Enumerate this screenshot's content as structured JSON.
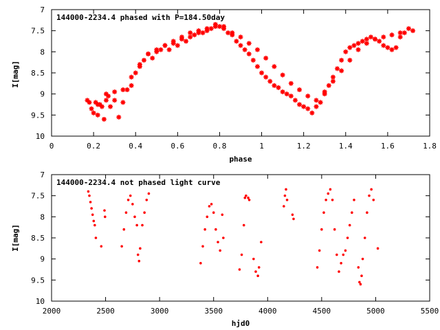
{
  "chart_data": [
    {
      "type": "scatter",
      "title": "144000-2234.4 phased with P=184.50day",
      "xlabel": "phase",
      "ylabel": "I[mag]",
      "xlim": [
        0,
        1.8
      ],
      "ylim": [
        10,
        7
      ],
      "y_inverted": true,
      "xticks": [
        0,
        0.2,
        0.4,
        0.6,
        0.8,
        1,
        1.2,
        1.4,
        1.6,
        1.8
      ],
      "xtick_labels": [
        "0",
        "0.2",
        "0.4",
        "0.6",
        "0.8",
        "1",
        "1.2",
        "1.4",
        "1.6",
        "1.8"
      ],
      "yticks": [
        7,
        7.5,
        8,
        8.5,
        9,
        9.5,
        10
      ],
      "ytick_labels": [
        "7",
        "7.5",
        "8",
        "8.5",
        "9",
        "9.5",
        "10"
      ],
      "grid": false,
      "legend": "none",
      "marker": "star",
      "color": "#ff0000",
      "series": [
        {
          "x": [
            0.17,
            0.19,
            0.2,
            0.21,
            0.22,
            0.23,
            0.24,
            0.25,
            0.26,
            0.27,
            0.28,
            0.3,
            0.32,
            0.34,
            0.36,
            0.38,
            0.4,
            0.42,
            0.44,
            0.46,
            0.48,
            0.5,
            0.52,
            0.54,
            0.56,
            0.58,
            0.6,
            0.62,
            0.64,
            0.66,
            0.68,
            0.7,
            0.72,
            0.74,
            0.76,
            0.78,
            0.8,
            0.82,
            0.84,
            0.86,
            0.88,
            0.9,
            0.92,
            0.94,
            0.96,
            0.98,
            1.0,
            1.02,
            1.04,
            1.06,
            1.08,
            1.1,
            1.12,
            1.14,
            1.16,
            1.18,
            1.2,
            1.22,
            1.24,
            1.26,
            1.28,
            1.3,
            1.32,
            1.34,
            1.36,
            1.38,
            1.4,
            1.42,
            1.44,
            1.46,
            1.48,
            1.5,
            1.52,
            1.54,
            1.56,
            1.58,
            1.6,
            1.62,
            1.64,
            1.66,
            1.68,
            1.7,
            1.72
          ],
          "y": [
            9.15,
            9.35,
            9.45,
            9.2,
            9.5,
            9.25,
            9.3,
            9.6,
            9.15,
            9.05,
            9.3,
            8.95,
            9.55,
            9.2,
            8.9,
            8.8,
            8.5,
            8.35,
            8.2,
            8.05,
            8.15,
            8.0,
            7.95,
            7.85,
            7.95,
            7.8,
            7.85,
            7.7,
            7.75,
            7.65,
            7.6,
            7.55,
            7.55,
            7.5,
            7.45,
            7.4,
            7.4,
            7.45,
            7.55,
            7.6,
            7.75,
            7.85,
            7.95,
            8.05,
            8.2,
            8.35,
            8.5,
            8.6,
            8.7,
            8.8,
            8.85,
            8.95,
            9.0,
            9.05,
            9.15,
            9.25,
            9.3,
            9.35,
            9.45,
            9.3,
            9.2,
            9.0,
            8.8,
            8.6,
            8.4,
            8.2,
            8.0,
            7.9,
            7.85,
            7.8,
            7.75,
            7.7,
            7.65,
            7.7,
            7.75,
            7.85,
            7.9,
            7.95,
            7.9,
            7.65,
            7.55,
            7.45,
            7.5
          ]
        },
        {
          "x": [
            0.18,
            0.22,
            0.26,
            0.3,
            0.34,
            0.38,
            0.42,
            0.46,
            0.5,
            0.54,
            0.58,
            0.62,
            0.66,
            0.7,
            0.74,
            0.78,
            0.82,
            0.86,
            0.9,
            0.94,
            0.98,
            1.02,
            1.06,
            1.1,
            1.14,
            1.18,
            1.22,
            1.26,
            1.3,
            1.34,
            1.38,
            1.42,
            1.46,
            1.5,
            1.54,
            1.58,
            1.62,
            1.66
          ],
          "y": [
            9.2,
            9.25,
            9.0,
            9.15,
            8.9,
            8.6,
            8.3,
            8.05,
            7.95,
            7.85,
            7.75,
            7.65,
            7.55,
            7.5,
            7.45,
            7.35,
            7.4,
            7.55,
            7.65,
            7.8,
            7.95,
            8.15,
            8.35,
            8.55,
            8.75,
            8.9,
            9.05,
            9.15,
            8.95,
            8.7,
            8.45,
            8.2,
            7.95,
            7.8,
            7.7,
            7.65,
            7.6,
            7.55
          ]
        }
      ]
    },
    {
      "type": "scatter",
      "title": "144000-2234.4 not phased light curve",
      "xlabel": "hjd0",
      "ylabel": "I[mag]",
      "xlim": [
        2000,
        5500
      ],
      "ylim": [
        10,
        7
      ],
      "y_inverted": true,
      "xticks": [
        2000,
        2500,
        3000,
        3500,
        4000,
        4500,
        5000,
        5500
      ],
      "xtick_labels": [
        "2000",
        "2500",
        "3000",
        "3500",
        "4000",
        "4500",
        "5000",
        "5500"
      ],
      "yticks": [
        7,
        7.5,
        8,
        8.5,
        9,
        9.5,
        10
      ],
      "ytick_labels": [
        "7",
        "7.5",
        "8",
        "8.5",
        "9",
        "9.5",
        "10"
      ],
      "grid": false,
      "legend": "none",
      "marker": "dot",
      "color": "#ff0000",
      "segments": [
        {
          "x": [
            2340,
            2350,
            2360,
            2370,
            2380,
            2390,
            2400
          ],
          "y": [
            7.4,
            7.5,
            7.65,
            7.8,
            7.95,
            8.1,
            8.2
          ]
        },
        {
          "x": [
            2410,
            2460,
            2490,
            2495
          ],
          "y": [
            8.5,
            8.7,
            7.85,
            8.0
          ]
        },
        {
          "x": [
            2650,
            2670,
            2690,
            2710,
            2730,
            2750,
            2770,
            2790
          ],
          "y": [
            8.7,
            8.3,
            7.9,
            7.6,
            7.5,
            7.7,
            8.0,
            8.2
          ]
        },
        {
          "x": [
            2800,
            2810,
            2820,
            2840,
            2860,
            2880,
            2900
          ],
          "y": [
            8.9,
            9.05,
            8.75,
            8.2,
            7.9,
            7.6,
            7.45
          ]
        },
        {
          "x": [
            3380,
            3400,
            3420,
            3440,
            3460,
            3480,
            3500,
            3520,
            3540,
            3560
          ],
          "y": [
            9.1,
            8.7,
            8.3,
            8.0,
            7.75,
            7.7,
            7.9,
            8.3,
            8.6,
            8.8
          ]
        },
        {
          "x": [
            3580,
            3590,
            3740,
            3760,
            3780,
            3790,
            3800,
            3820,
            3830
          ],
          "y": [
            7.95,
            8.5,
            9.25,
            8.9,
            8.2,
            7.55,
            7.5,
            7.55,
            7.6
          ]
        },
        {
          "x": [
            3870,
            3890,
            3910,
            3920,
            3940
          ],
          "y": [
            9.0,
            9.3,
            9.4,
            9.2,
            8.6
          ]
        },
        {
          "x": [
            4150,
            4160,
            4170,
            4180,
            4230,
            4240
          ],
          "y": [
            7.75,
            7.5,
            7.35,
            7.6,
            7.95,
            8.05
          ]
        },
        {
          "x": [
            4460,
            4480,
            4500,
            4520,
            4540,
            4560,
            4580,
            4600
          ],
          "y": [
            9.2,
            8.8,
            8.3,
            7.9,
            7.6,
            7.45,
            7.35,
            7.6
          ]
        },
        {
          "x": [
            4620,
            4640,
            4660,
            4680,
            4700,
            4720,
            4740
          ],
          "y": [
            8.3,
            8.9,
            9.3,
            9.1,
            8.9,
            8.8,
            8.5
          ]
        },
        {
          "x": [
            4760,
            4780,
            4800,
            4840,
            4850,
            4860,
            4870
          ],
          "y": [
            8.2,
            7.9,
            7.6,
            9.2,
            9.55,
            9.6,
            9.4
          ]
        },
        {
          "x": [
            4880,
            4900,
            4920,
            4940,
            4960,
            4980,
            5020
          ],
          "y": [
            9.0,
            8.5,
            7.9,
            7.5,
            7.35,
            7.6,
            8.75
          ]
        }
      ]
    }
  ]
}
